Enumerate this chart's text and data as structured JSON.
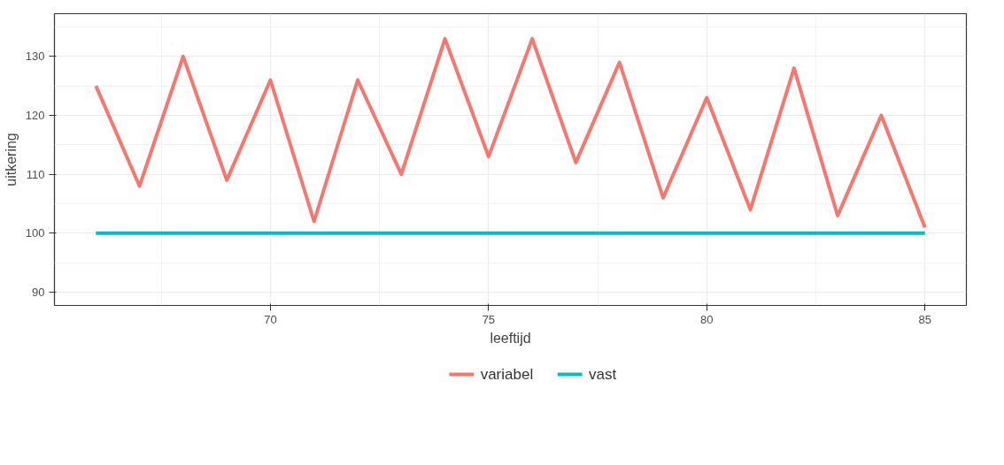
{
  "chart_data": {
    "type": "line",
    "xlabel": "leeftijd",
    "ylabel": "uitkering",
    "x": [
      66,
      67,
      68,
      69,
      70,
      71,
      72,
      73,
      74,
      75,
      76,
      77,
      78,
      79,
      80,
      81,
      82,
      83,
      84,
      85
    ],
    "series": [
      {
        "name": "variabel",
        "color": "#f8766d",
        "values": [
          125,
          108,
          130,
          109,
          126,
          102,
          126,
          110,
          133,
          113,
          133,
          112,
          129,
          106,
          123,
          104,
          128,
          103,
          120,
          101
        ]
      },
      {
        "name": "vast",
        "color": "#00bfc4",
        "values": [
          100,
          100,
          100,
          100,
          100,
          100,
          100,
          100,
          100,
          100,
          100,
          100,
          100,
          100,
          100,
          100,
          100,
          100,
          100,
          100
        ]
      }
    ],
    "xlim": [
      65.05,
      85.95
    ],
    "ylim": [
      87.75,
      137.25
    ],
    "xticks": [
      70,
      75,
      80,
      85
    ],
    "yticks": [
      90,
      100,
      110,
      120,
      130
    ],
    "grid": true,
    "legend": "bottom",
    "marker": "none",
    "line_style": "solid"
  }
}
